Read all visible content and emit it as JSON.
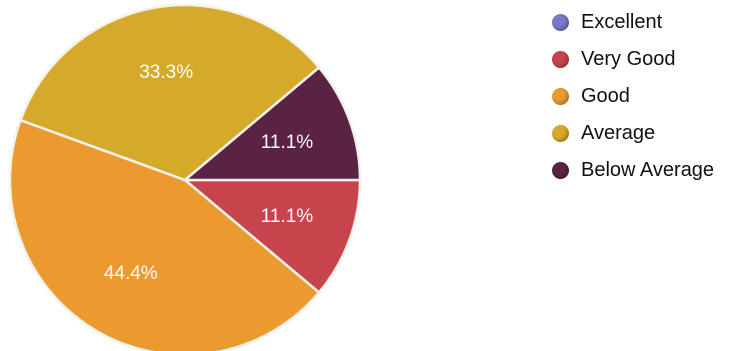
{
  "chart_data": {
    "type": "pie",
    "title": "",
    "slices": [
      {
        "label": "Excellent",
        "value": 0,
        "display": "",
        "color": "#7b78c9"
      },
      {
        "label": "Very Good",
        "value": 11.1,
        "display": "11.1%",
        "color": "#c8444c"
      },
      {
        "label": "Good",
        "value": 44.4,
        "display": "44.4%",
        "color": "#eb9a2f"
      },
      {
        "label": "Average",
        "value": 33.3,
        "display": "33.3%",
        "color": "#d5a92a"
      },
      {
        "label": "Below Average",
        "value": 11.1,
        "display": "11.1%",
        "color": "#5a2344"
      }
    ],
    "legend_position": "right",
    "start_angle_deg": 0,
    "direction": "clockwise"
  }
}
